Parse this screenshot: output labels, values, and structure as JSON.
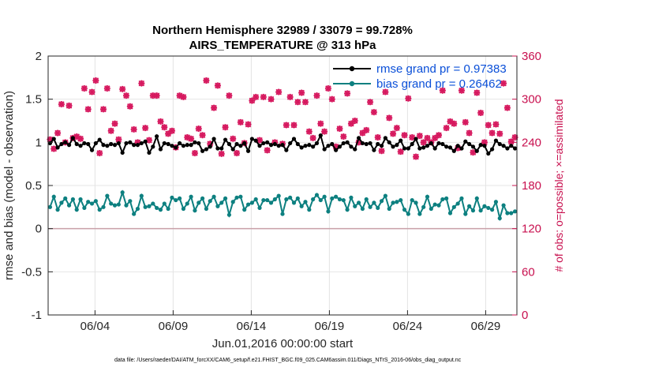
{
  "chart_data": {
    "type": "line",
    "title_line1": "Northern Hemisphere 32989 / 33079 = 99.728%",
    "title_line2": "AIRS_TEMPERATURE @ 313 hPa",
    "xlabel": "Jun.01,2016 00:00:00 start",
    "ylabel_left": "rmse and bias (model - observation)",
    "ylabel_right": "# of obs: o=possible; ×=assimilated",
    "footnote": "data file: /Users/raeder/DAI/ATM_forcXX/CAM6_setup/f.e21.FHIST_BGC.f09_025.CAM6assim.011/Diags_NTrS_2016-06/obs_diag_output.nc",
    "xlim": [
      1,
      31
    ],
    "ylim_left": [
      -1,
      2
    ],
    "ylim_right": [
      0,
      360
    ],
    "yticks_left": [
      "-1",
      "-0.5",
      "0",
      "0.5",
      "1",
      "1.5",
      "2"
    ],
    "yticks_right": [
      "0",
      "60",
      "120",
      "180",
      "240",
      "300",
      "360"
    ],
    "xtick_positions": [
      4,
      9,
      14,
      19,
      24,
      29
    ],
    "xtick_labels": [
      "06/04",
      "06/09",
      "06/14",
      "06/19",
      "06/24",
      "06/29"
    ],
    "grid": true,
    "legend_position": "top-right",
    "colors": {
      "rmse": "#000000",
      "bias": "#0d8080",
      "obs": "#d6185e",
      "zero_line": "#c8a0a8",
      "grid": "#e4e4e4"
    },
    "series": [
      {
        "name": "rmse grand pr = 0.97383",
        "axis": "left",
        "values": [
          0.99,
          1.04,
          0.94,
          0.98,
          1.0,
          0.97,
          1.05,
          0.98,
          0.96,
          0.99,
          0.98,
          0.91,
          0.99,
          1.03,
          0.97,
          0.96,
          0.98,
          0.97,
          0.99,
          0.88,
          0.99,
          1.0,
          0.97,
          0.97,
          0.99,
          1.01,
          0.88,
          0.95,
          1.07,
          0.92,
          0.99,
          0.98,
          0.96,
          0.94,
          0.99,
          0.96,
          0.97,
          0.97,
          1.0,
          0.99,
          0.9,
          0.92,
          0.95,
          1.04,
          0.93,
          0.93,
          1.03,
          0.98,
          0.92,
          0.98,
          0.96,
          0.99,
          0.9,
          1.04,
          1.02,
          0.96,
          0.99,
          1.0,
          0.97,
          0.98,
          0.96,
          0.97,
          0.91,
          0.99,
          1.04,
          0.98,
          0.94,
          0.96,
          0.97,
          0.95,
          0.99,
          1.08,
          0.92,
          0.96,
          0.98,
          0.91,
          0.95,
          0.99,
          1.0,
          0.95,
          0.92,
          1.05,
          0.99,
          0.98,
          0.99,
          0.91,
          0.98,
          0.96,
          1.05,
          1.0,
          0.95,
          0.97,
          1.02,
          0.93,
          0.93,
          0.98,
          1.04,
          0.93,
          0.94,
          0.96,
          0.99,
          0.93,
          0.99,
          0.98,
          0.95,
          0.94,
          0.9,
          0.96,
          0.93,
          1.01,
          0.98,
          0.95,
          0.9,
          0.97,
          0.96,
          0.87,
          0.92,
          1.02,
          0.98,
          0.96,
          0.93,
          0.96,
          0.93
        ]
      },
      {
        "name": "bias grand pr = 0.26462",
        "axis": "left",
        "values": [
          0.25,
          0.37,
          0.22,
          0.3,
          0.35,
          0.27,
          0.34,
          0.22,
          0.34,
          0.24,
          0.31,
          0.29,
          0.32,
          0.22,
          0.25,
          0.38,
          0.29,
          0.27,
          0.28,
          0.42,
          0.27,
          0.32,
          0.17,
          0.23,
          0.38,
          0.25,
          0.26,
          0.29,
          0.24,
          0.22,
          0.29,
          0.23,
          0.36,
          0.33,
          0.35,
          0.23,
          0.29,
          0.37,
          0.21,
          0.3,
          0.35,
          0.23,
          0.32,
          0.37,
          0.26,
          0.3,
          0.35,
          0.16,
          0.31,
          0.36,
          0.37,
          0.22,
          0.28,
          0.3,
          0.34,
          0.24,
          0.33,
          0.33,
          0.3,
          0.34,
          0.38,
          0.17,
          0.34,
          0.36,
          0.3,
          0.35,
          0.26,
          0.31,
          0.22,
          0.34,
          0.39,
          0.33,
          0.37,
          0.2,
          0.35,
          0.37,
          0.34,
          0.33,
          0.22,
          0.36,
          0.26,
          0.3,
          0.23,
          0.34,
          0.25,
          0.3,
          0.24,
          0.32,
          0.38,
          0.23,
          0.3,
          0.31,
          0.33,
          0.22,
          0.17,
          0.33,
          0.3,
          0.17,
          0.25,
          0.37,
          0.23,
          0.28,
          0.27,
          0.34,
          0.35,
          0.18,
          0.25,
          0.29,
          0.35,
          0.17,
          0.26,
          0.21,
          0.35,
          0.21,
          0.26,
          0.24,
          0.22,
          0.31,
          0.12,
          0.27,
          0.18,
          0.18,
          0.2
        ]
      },
      {
        "name": "# of obs assimilated",
        "axis": "right",
        "values": [
          244,
          231,
          253,
          293,
          240,
          291,
          246,
          248,
          245,
          315,
          286,
          310,
          326,
          225,
          286,
          315,
          256,
          266,
          244,
          314,
          305,
          290,
          258,
          240,
          322,
          260,
          243,
          305,
          305,
          269,
          261,
          252,
          256,
          233,
          305,
          303,
          247,
          245,
          225,
          259,
          250,
          326,
          238,
          288,
          319,
          224,
          261,
          305,
          245,
          225,
          268,
          239,
          265,
          298,
          303,
          243,
          303,
          229,
          300,
          240,
          310,
          238,
          264,
          303,
          264,
          296,
          309,
          296,
          255,
          246,
          305,
          266,
          255,
          315,
          300,
          234,
          259,
          248,
          308,
          266,
          270,
          240,
          253,
          257,
          296,
          282,
          247,
          228,
          310,
          274,
          252,
          260,
          227,
          250,
          301,
          247,
          220,
          249,
          240,
          246,
          240,
          246,
          250,
          312,
          260,
          269,
          266,
          232,
          312,
          268,
          253,
          226,
          309,
          281,
          240,
          264,
          253,
          265,
          252,
          322,
          288,
          241,
          247
        ]
      },
      {
        "name": "# of obs possible",
        "axis": "right",
        "values": [
          244,
          231,
          253,
          293,
          240,
          291,
          246,
          248,
          245,
          315,
          286,
          310,
          326,
          225,
          286,
          315,
          256,
          266,
          244,
          314,
          305,
          290,
          258,
          240,
          322,
          260,
          243,
          305,
          305,
          269,
          261,
          252,
          256,
          233,
          305,
          303,
          247,
          245,
          225,
          259,
          250,
          326,
          238,
          288,
          319,
          224,
          261,
          305,
          245,
          225,
          268,
          239,
          265,
          298,
          303,
          243,
          303,
          229,
          300,
          240,
          310,
          238,
          264,
          303,
          264,
          296,
          309,
          296,
          255,
          246,
          305,
          266,
          255,
          315,
          300,
          234,
          259,
          248,
          308,
          266,
          270,
          240,
          253,
          257,
          296,
          282,
          247,
          228,
          310,
          274,
          252,
          260,
          227,
          250,
          301,
          247,
          220,
          249,
          240,
          246,
          240,
          246,
          250,
          312,
          260,
          269,
          266,
          232,
          312,
          268,
          253,
          226,
          309,
          281,
          240,
          264,
          253,
          265,
          252,
          322,
          288,
          241,
          247
        ]
      }
    ]
  }
}
